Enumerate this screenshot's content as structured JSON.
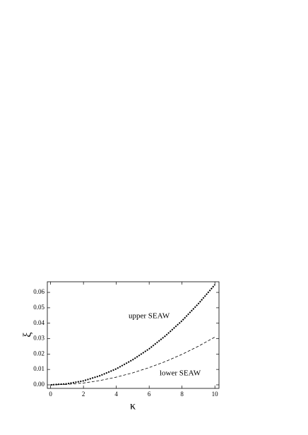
{
  "chart_data": {
    "type": "line",
    "x_label": "κ",
    "y_label": "ξ",
    "x": [
      0,
      1,
      2,
      3,
      4,
      5,
      6,
      7,
      8,
      9,
      10
    ],
    "series": [
      {
        "name": "upper SEAW",
        "color": "#000000",
        "style": "dotted",
        "values": [
          0,
          0.0007,
          0.0026,
          0.0059,
          0.0104,
          0.0163,
          0.0234,
          0.0319,
          0.0416,
          0.0527,
          0.065
        ]
      },
      {
        "name": "lower SEAW",
        "color": "#000000",
        "style": "dashed",
        "values": [
          0,
          0.0003,
          0.0012,
          0.0028,
          0.005,
          0.0078,
          0.0112,
          0.0152,
          0.0198,
          0.0251,
          0.031
        ]
      }
    ],
    "xlim": [
      -0.2,
      10.25
    ],
    "ylim": [
      -0.0023,
      0.0669
    ],
    "xticks": [
      0,
      2,
      4,
      6,
      8,
      10
    ],
    "yticks": [
      {
        "value": 0,
        "label": "0.00"
      },
      {
        "value": 0.01,
        "label": "0.01"
      },
      {
        "value": 0.02,
        "label": "0.02"
      },
      {
        "value": 0.03,
        "label": "0.03"
      },
      {
        "value": 0.04,
        "label": "0.04"
      },
      {
        "value": 0.05,
        "label": "0.05"
      },
      {
        "value": 0.06,
        "label": "0.06"
      }
    ],
    "grid": false
  }
}
